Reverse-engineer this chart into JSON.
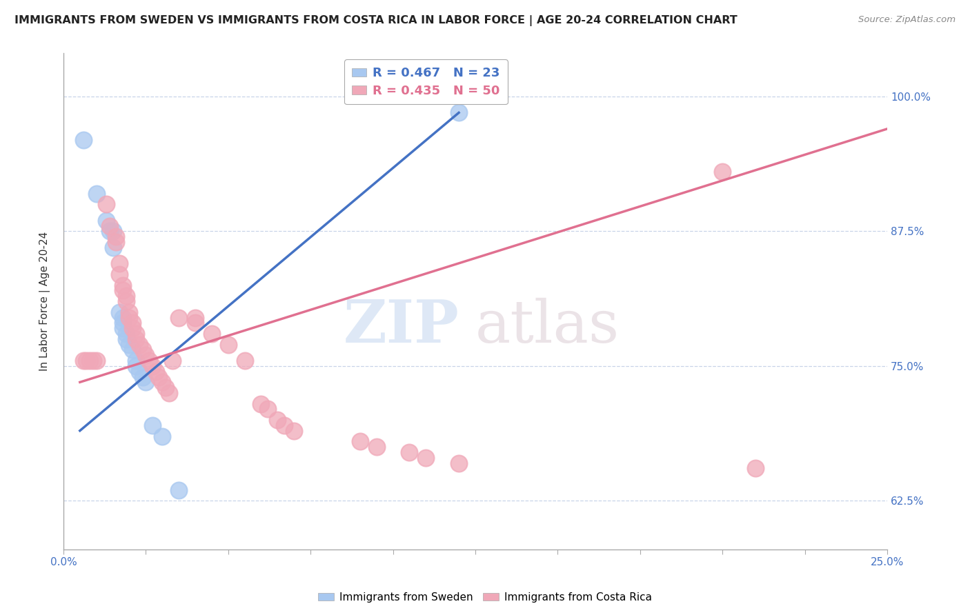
{
  "title": "IMMIGRANTS FROM SWEDEN VS IMMIGRANTS FROM COSTA RICA IN LABOR FORCE | AGE 20-24 CORRELATION CHART",
  "source": "Source: ZipAtlas.com",
  "ylabel": "In Labor Force | Age 20-24",
  "xlim": [
    0.0,
    0.25
  ],
  "ylim": [
    0.58,
    1.04
  ],
  "ytick_values": [
    0.625,
    0.75,
    0.875,
    1.0
  ],
  "ytick_labels": [
    "62.5%",
    "75.0%",
    "87.5%",
    "100.0%"
  ],
  "xtick_vals": [
    0.0,
    0.025,
    0.05,
    0.075,
    0.1,
    0.125,
    0.15,
    0.175,
    0.2,
    0.225,
    0.25
  ],
  "sweden_R": 0.467,
  "sweden_N": 23,
  "costarica_R": 0.435,
  "costarica_N": 50,
  "sweden_color": "#a8c8f0",
  "costarica_color": "#f0a8b8",
  "sweden_line_color": "#4472c4",
  "costarica_line_color": "#e07090",
  "sweden_points": [
    [
      0.006,
      0.96
    ],
    [
      0.01,
      0.91
    ],
    [
      0.013,
      0.885
    ],
    [
      0.014,
      0.875
    ],
    [
      0.015,
      0.875
    ],
    [
      0.015,
      0.86
    ],
    [
      0.017,
      0.8
    ],
    [
      0.018,
      0.795
    ],
    [
      0.018,
      0.79
    ],
    [
      0.018,
      0.785
    ],
    [
      0.019,
      0.78
    ],
    [
      0.019,
      0.775
    ],
    [
      0.02,
      0.77
    ],
    [
      0.021,
      0.765
    ],
    [
      0.022,
      0.755
    ],
    [
      0.022,
      0.75
    ],
    [
      0.023,
      0.745
    ],
    [
      0.024,
      0.74
    ],
    [
      0.025,
      0.735
    ],
    [
      0.027,
      0.695
    ],
    [
      0.03,
      0.685
    ],
    [
      0.035,
      0.635
    ],
    [
      0.12,
      0.985
    ]
  ],
  "costarica_points": [
    [
      0.006,
      0.755
    ],
    [
      0.007,
      0.755
    ],
    [
      0.008,
      0.755
    ],
    [
      0.009,
      0.755
    ],
    [
      0.01,
      0.755
    ],
    [
      0.013,
      0.9
    ],
    [
      0.014,
      0.88
    ],
    [
      0.016,
      0.87
    ],
    [
      0.016,
      0.865
    ],
    [
      0.017,
      0.845
    ],
    [
      0.017,
      0.835
    ],
    [
      0.018,
      0.825
    ],
    [
      0.018,
      0.82
    ],
    [
      0.019,
      0.815
    ],
    [
      0.019,
      0.81
    ],
    [
      0.02,
      0.8
    ],
    [
      0.02,
      0.795
    ],
    [
      0.021,
      0.79
    ],
    [
      0.021,
      0.785
    ],
    [
      0.022,
      0.78
    ],
    [
      0.022,
      0.775
    ],
    [
      0.023,
      0.77
    ],
    [
      0.024,
      0.765
    ],
    [
      0.025,
      0.76
    ],
    [
      0.026,
      0.755
    ],
    [
      0.027,
      0.75
    ],
    [
      0.028,
      0.745
    ],
    [
      0.029,
      0.74
    ],
    [
      0.03,
      0.735
    ],
    [
      0.031,
      0.73
    ],
    [
      0.032,
      0.725
    ],
    [
      0.033,
      0.755
    ],
    [
      0.035,
      0.795
    ],
    [
      0.04,
      0.795
    ],
    [
      0.04,
      0.79
    ],
    [
      0.045,
      0.78
    ],
    [
      0.05,
      0.77
    ],
    [
      0.055,
      0.755
    ],
    [
      0.06,
      0.715
    ],
    [
      0.062,
      0.71
    ],
    [
      0.065,
      0.7
    ],
    [
      0.067,
      0.695
    ],
    [
      0.07,
      0.69
    ],
    [
      0.09,
      0.68
    ],
    [
      0.095,
      0.675
    ],
    [
      0.105,
      0.67
    ],
    [
      0.11,
      0.665
    ],
    [
      0.12,
      0.66
    ],
    [
      0.2,
      0.93
    ],
    [
      0.21,
      0.655
    ]
  ]
}
